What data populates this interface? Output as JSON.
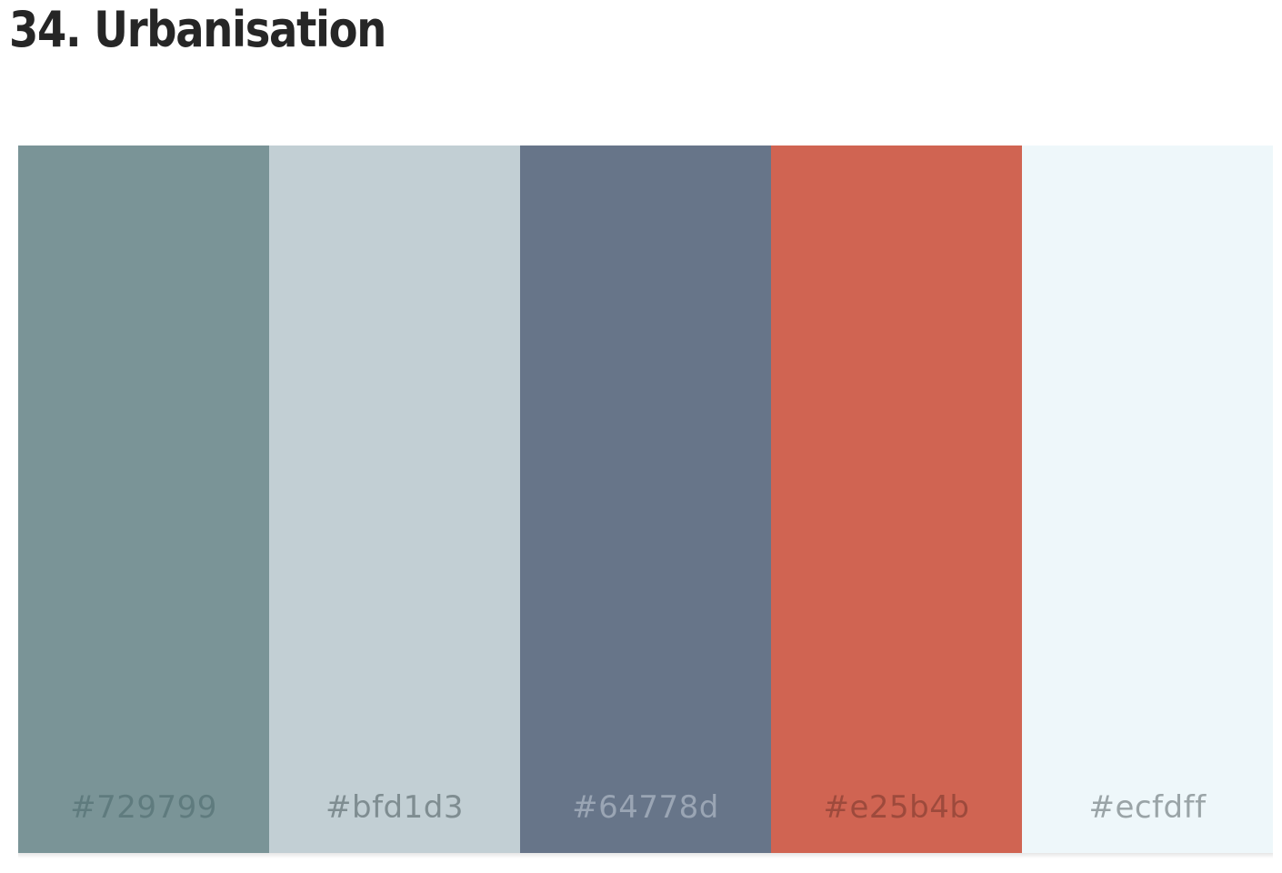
{
  "title": "34. Urbanisation",
  "palette": {
    "swatches": [
      {
        "color": "#7a9497",
        "label": "#729799",
        "label_color": "#5f7b7e"
      },
      {
        "color": "#c2cfd4",
        "label": "#bfd1d3",
        "label_color": "#7f8d91"
      },
      {
        "color": "#677589",
        "label": "#64778d",
        "label_color": "#9aa5b4"
      },
      {
        "color": "#d06452",
        "label": "#e25b4b",
        "label_color": "#9d4a3c"
      },
      {
        "color": "#eef7fa",
        "label": "#ecfdff",
        "label_color": "#9aa4a7"
      }
    ]
  }
}
